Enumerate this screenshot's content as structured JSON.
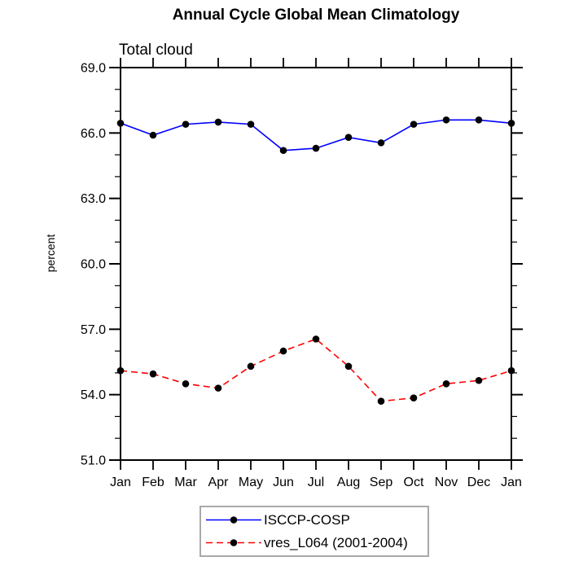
{
  "page": {
    "background": "#ffffff"
  },
  "chart_data": {
    "type": "line",
    "title": "Annual Cycle Global Mean Climatology",
    "subtitle": "Total cloud",
    "xlabel": "",
    "ylabel": "percent",
    "categories": [
      "Jan",
      "Feb",
      "Mar",
      "Apr",
      "May",
      "Jun",
      "Jul",
      "Aug",
      "Sep",
      "Oct",
      "Nov",
      "Dec",
      "Jan"
    ],
    "ylim": [
      51.0,
      69.0
    ],
    "ytick_major_interval": 3.0,
    "ytick_minor_interval": 1.0,
    "ytick_labels": [
      "51.0",
      "54.0",
      "57.0",
      "60.0",
      "63.0",
      "66.0",
      "69.0"
    ],
    "grid": false,
    "legend_position": "bottom-center-boxed",
    "frame_color": "#000000",
    "legend_border_color": "#a9a9a9",
    "series": [
      {
        "name": "ISCCP-COSP",
        "color": "#0000ff",
        "style": "solid",
        "marker": "filled-circle",
        "marker_color": "#000000",
        "values": [
          66.45,
          65.9,
          66.4,
          66.5,
          66.4,
          65.2,
          65.3,
          65.8,
          65.55,
          66.4,
          66.6,
          66.6,
          66.45
        ]
      },
      {
        "name": "vres_L064 (2001-2004)",
        "color": "#ff0000",
        "style": "dashed",
        "marker": "filled-circle",
        "marker_color": "#000000",
        "values": [
          55.1,
          54.95,
          54.5,
          54.3,
          55.3,
          56.0,
          56.55,
          55.3,
          53.7,
          53.85,
          54.5,
          54.65,
          55.1
        ]
      }
    ]
  }
}
